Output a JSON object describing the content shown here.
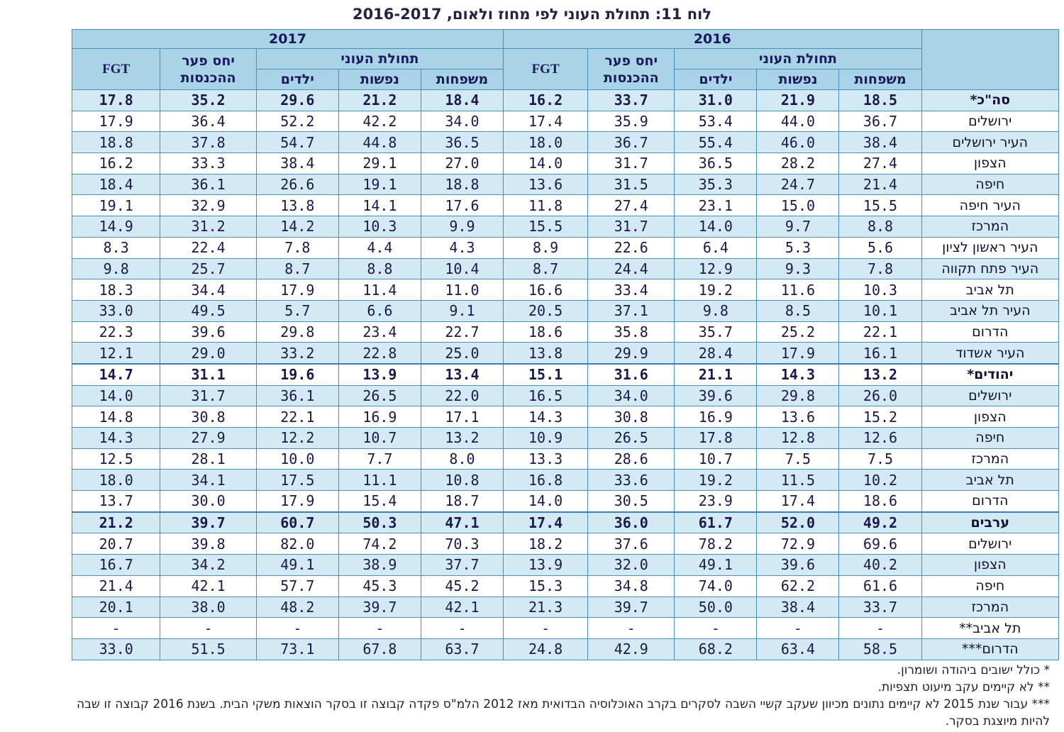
{
  "title": "לוח 11: תחולת העוני לפי מחוז ולאום, 2016-2017",
  "headers": {
    "year_2016": "2016",
    "year_2017": "2017",
    "poverty_incidence": "תחולת העוני",
    "income_gap": "יחס פער ההכנסות",
    "fgt": "FGT",
    "families": "משפחות",
    "persons": "נפשות",
    "children": "ילדים"
  },
  "rows": [
    {
      "label": "סה\"כ*",
      "bold": true,
      "v2016": [
        "18.5",
        "21.9",
        "31.0",
        "33.7",
        "16.2"
      ],
      "v2017": [
        "18.4",
        "21.2",
        "29.6",
        "35.2",
        "17.8"
      ]
    },
    {
      "label": "ירושלים",
      "bold": false,
      "v2016": [
        "36.7",
        "44.0",
        "53.4",
        "35.9",
        "17.4"
      ],
      "v2017": [
        "34.0",
        "42.2",
        "52.2",
        "36.4",
        "17.9"
      ]
    },
    {
      "label": "העיר ירושלים",
      "bold": false,
      "v2016": [
        "38.4",
        "46.0",
        "55.4",
        "36.7",
        "18.0"
      ],
      "v2017": [
        "36.5",
        "44.8",
        "54.7",
        "37.8",
        "18.8"
      ]
    },
    {
      "label": "הצפון",
      "bold": false,
      "v2016": [
        "27.4",
        "28.2",
        "36.5",
        "31.7",
        "14.0"
      ],
      "v2017": [
        "27.0",
        "29.1",
        "38.4",
        "33.3",
        "16.2"
      ]
    },
    {
      "label": "חיפה",
      "bold": false,
      "v2016": [
        "21.4",
        "24.7",
        "35.3",
        "31.5",
        "13.6"
      ],
      "v2017": [
        "18.8",
        "19.1",
        "26.6",
        "36.1",
        "18.4"
      ]
    },
    {
      "label": "העיר חיפה",
      "bold": false,
      "v2016": [
        "15.5",
        "15.0",
        "23.1",
        "27.4",
        "11.8"
      ],
      "v2017": [
        "17.6",
        "14.1",
        "13.8",
        "32.9",
        "19.1"
      ]
    },
    {
      "label": "המרכז",
      "bold": false,
      "v2016": [
        "8.8",
        "9.7",
        "14.0",
        "31.7",
        "15.5"
      ],
      "v2017": [
        "9.9",
        "10.3",
        "14.2",
        "31.2",
        "14.9"
      ]
    },
    {
      "label": "העיר ראשון לציון",
      "bold": false,
      "v2016": [
        "5.6",
        "5.3",
        "6.4",
        "22.6",
        "8.9"
      ],
      "v2017": [
        "4.3",
        "4.4",
        "7.8",
        "22.4",
        "8.3"
      ]
    },
    {
      "label": "העיר פתח תקווה",
      "bold": false,
      "v2016": [
        "7.8",
        "9.3",
        "12.9",
        "24.4",
        "8.7"
      ],
      "v2017": [
        "10.4",
        "8.8",
        "8.7",
        "25.7",
        "9.8"
      ]
    },
    {
      "label": "תל אביב",
      "bold": false,
      "v2016": [
        "10.3",
        "11.6",
        "19.2",
        "33.4",
        "16.6"
      ],
      "v2017": [
        "11.0",
        "11.4",
        "17.9",
        "34.4",
        "18.3"
      ]
    },
    {
      "label": "העיר תל אביב",
      "bold": false,
      "v2016": [
        "10.1",
        "8.5",
        "9.8",
        "37.1",
        "20.5"
      ],
      "v2017": [
        "9.1",
        "6.6",
        "5.7",
        "49.5",
        "33.0"
      ]
    },
    {
      "label": "הדרום",
      "bold": false,
      "v2016": [
        "22.1",
        "25.2",
        "35.7",
        "35.8",
        "18.6"
      ],
      "v2017": [
        "22.7",
        "23.4",
        "29.8",
        "39.6",
        "22.3"
      ]
    },
    {
      "label": "העיר אשדוד",
      "bold": false,
      "v2016": [
        "16.1",
        "17.9",
        "28.4",
        "29.9",
        "13.8"
      ],
      "v2017": [
        "25.0",
        "22.8",
        "33.2",
        "29.0",
        "12.1"
      ]
    },
    {
      "label": "יהודים*",
      "bold": true,
      "v2016": [
        "13.2",
        "14.3",
        "21.1",
        "31.6",
        "15.1"
      ],
      "v2017": [
        "13.4",
        "13.9",
        "19.6",
        "31.1",
        "14.7"
      ]
    },
    {
      "label": "ירושלים",
      "bold": false,
      "v2016": [
        "26.0",
        "29.8",
        "39.6",
        "34.0",
        "16.5"
      ],
      "v2017": [
        "22.0",
        "26.5",
        "36.1",
        "31.7",
        "14.0"
      ]
    },
    {
      "label": "הצפון",
      "bold": false,
      "v2016": [
        "15.2",
        "13.6",
        "16.9",
        "30.8",
        "14.3"
      ],
      "v2017": [
        "17.1",
        "16.9",
        "22.1",
        "30.8",
        "14.8"
      ]
    },
    {
      "label": "חיפה",
      "bold": false,
      "v2016": [
        "12.6",
        "12.8",
        "17.8",
        "26.5",
        "10.9"
      ],
      "v2017": [
        "13.2",
        "10.7",
        "12.2",
        "27.9",
        "14.3"
      ]
    },
    {
      "label": "המרכז",
      "bold": false,
      "v2016": [
        "7.5",
        "7.5",
        "10.7",
        "28.6",
        "13.3"
      ],
      "v2017": [
        "8.0",
        "7.7",
        "10.0",
        "28.1",
        "12.5"
      ]
    },
    {
      "label": "תל אביב",
      "bold": false,
      "v2016": [
        "10.2",
        "11.5",
        "19.2",
        "33.6",
        "16.8"
      ],
      "v2017": [
        "10.8",
        "11.1",
        "17.5",
        "34.1",
        "18.0"
      ]
    },
    {
      "label": "הדרום",
      "bold": false,
      "v2016": [
        "18.6",
        "17.4",
        "23.9",
        "30.5",
        "14.0"
      ],
      "v2017": [
        "18.7",
        "15.4",
        "17.9",
        "30.0",
        "13.7"
      ]
    },
    {
      "label": "ערבים",
      "bold": true,
      "v2016": [
        "49.2",
        "52.0",
        "61.7",
        "36.0",
        "17.4"
      ],
      "v2017": [
        "47.1",
        "50.3",
        "60.7",
        "39.7",
        "21.2"
      ]
    },
    {
      "label": "ירושלים",
      "bold": false,
      "v2016": [
        "69.6",
        "72.9",
        "78.2",
        "37.6",
        "18.2"
      ],
      "v2017": [
        "70.3",
        "74.2",
        "82.0",
        "39.8",
        "20.7"
      ]
    },
    {
      "label": "הצפון",
      "bold": false,
      "v2016": [
        "40.2",
        "39.6",
        "49.1",
        "32.0",
        "13.9"
      ],
      "v2017": [
        "37.7",
        "38.9",
        "49.1",
        "34.2",
        "16.7"
      ]
    },
    {
      "label": "חיפה",
      "bold": false,
      "v2016": [
        "61.6",
        "62.2",
        "74.0",
        "34.8",
        "15.3"
      ],
      "v2017": [
        "45.2",
        "45.3",
        "57.7",
        "42.1",
        "21.4"
      ]
    },
    {
      "label": "המרכז",
      "bold": false,
      "v2016": [
        "33.7",
        "38.4",
        "50.0",
        "39.7",
        "21.3"
      ],
      "v2017": [
        "42.1",
        "39.7",
        "48.2",
        "38.0",
        "20.1"
      ]
    },
    {
      "label": "תל אביב**",
      "bold": false,
      "v2016": [
        "-",
        "-",
        "-",
        "-",
        "-"
      ],
      "v2017": [
        "-",
        "-",
        "-",
        "-",
        "-"
      ]
    },
    {
      "label": "הדרום***",
      "bold": false,
      "v2016": [
        "58.5",
        "63.4",
        "68.2",
        "42.9",
        "24.8"
      ],
      "v2017": [
        "63.7",
        "67.8",
        "73.1",
        "51.5",
        "33.0"
      ]
    }
  ],
  "notes": [
    "* כולל ישובים ביהודה ושומרון.",
    "** לא קיימים עקב מיעוט תצפיות.",
    "*** עבור שנת 2015 לא קיימים נתונים מכיוון שעקב קשיי השבה לסקרים בקרב האוכלוסיה הבדואית מאז 2012 הלמ\"ס פקדה קבוצה זו בסקר הוצאות משקי הבית. בשנת 2016 קבוצה זו שבה להיות מיוצגת בסקר."
  ],
  "colors": {
    "header_bg": "#a9d3e6",
    "stripe_bg": "#d3eaf5",
    "border": "#4a8fb8",
    "text": "#1a1a4a"
  }
}
